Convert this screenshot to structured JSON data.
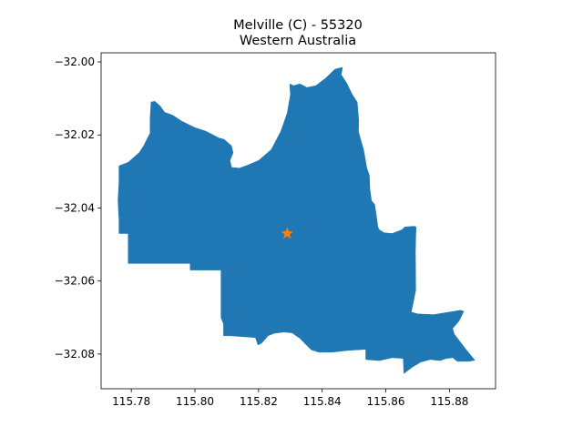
{
  "figure": {
    "title_line1": "Melville (C) - 55320",
    "title_line2": "Western Australia"
  },
  "chart_data": {
    "type": "map",
    "title": "Melville (C) - 55320",
    "subtitle": "Western Australia",
    "xlabel": "",
    "ylabel": "",
    "xlim": [
      115.7705,
      115.8945
    ],
    "ylim": [
      -32.0895,
      -31.9975
    ],
    "x_ticks": [
      "115.78",
      "115.80",
      "115.82",
      "115.84",
      "115.86",
      "115.88"
    ],
    "y_ticks": [
      "−32.00",
      "−32.02",
      "−32.04",
      "−32.06",
      "−32.08"
    ],
    "grid": false,
    "legend": "none",
    "colors": {
      "region_fill": "#1f77b4",
      "marker": "#ff7f0e"
    },
    "region_polygon": [
      [
        115.7761,
        -32.0285
      ],
      [
        115.779,
        -32.0275
      ],
      [
        115.7812,
        -32.0258
      ],
      [
        115.7825,
        -32.0248
      ],
      [
        115.784,
        -32.0228
      ],
      [
        115.785,
        -32.021
      ],
      [
        115.7859,
        -32.0195
      ],
      [
        115.7859,
        -32.0155
      ],
      [
        115.7862,
        -32.011
      ],
      [
        115.7874,
        -32.0108
      ],
      [
        115.789,
        -32.012
      ],
      [
        115.7905,
        -32.0138
      ],
      [
        115.7918,
        -32.0142
      ],
      [
        115.793,
        -32.0146
      ],
      [
        115.796,
        -32.0163
      ],
      [
        115.8,
        -32.018
      ],
      [
        115.8035,
        -32.019
      ],
      [
        115.8075,
        -32.0208
      ],
      [
        115.8092,
        -32.0212
      ],
      [
        115.8115,
        -32.023
      ],
      [
        115.812,
        -32.0249
      ],
      [
        115.811,
        -32.027
      ],
      [
        115.8115,
        -32.0289
      ],
      [
        115.814,
        -32.0291
      ],
      [
        115.8165,
        -32.0283
      ],
      [
        115.82,
        -32.027
      ],
      [
        115.824,
        -32.024
      ],
      [
        115.827,
        -32.019
      ],
      [
        115.829,
        -32.014
      ],
      [
        115.83,
        -32.009
      ],
      [
        115.8298,
        -32.006
      ],
      [
        115.831,
        -32.0065
      ],
      [
        115.833,
        -32.006
      ],
      [
        115.8352,
        -32.007
      ],
      [
        115.838,
        -32.0065
      ],
      [
        115.841,
        -32.0045
      ],
      [
        115.844,
        -32.002
      ],
      [
        115.8464,
        -32.0015
      ],
      [
        115.846,
        -32.0035
      ],
      [
        115.8475,
        -32.0055
      ],
      [
        115.8495,
        -32.009
      ],
      [
        115.851,
        -32.011
      ],
      [
        115.8515,
        -32.016
      ],
      [
        115.8514,
        -32.019
      ],
      [
        115.852,
        -32.021
      ],
      [
        115.853,
        -32.024
      ],
      [
        115.854,
        -32.029
      ],
      [
        115.8548,
        -32.031
      ],
      [
        115.855,
        -32.035
      ],
      [
        115.8555,
        -32.038
      ],
      [
        115.8565,
        -32.039
      ],
      [
        115.857,
        -32.042
      ],
      [
        115.8575,
        -32.0452
      ],
      [
        115.858,
        -32.046
      ],
      [
        115.8595,
        -32.0468
      ],
      [
        115.862,
        -32.047
      ],
      [
        115.865,
        -32.046
      ],
      [
        115.866,
        -32.0452
      ],
      [
        115.869,
        -32.045
      ],
      [
        115.8695,
        -32.0452
      ],
      [
        115.8693,
        -32.052
      ],
      [
        115.8694,
        -32.0625
      ],
      [
        115.868,
        -32.0685
      ],
      [
        115.87,
        -32.069
      ],
      [
        115.875,
        -32.0692
      ],
      [
        115.88,
        -32.0685
      ],
      [
        115.8835,
        -32.068
      ],
      [
        115.8845,
        -32.0683
      ],
      [
        115.883,
        -32.071
      ],
      [
        115.881,
        -32.073
      ],
      [
        115.8815,
        -32.0745
      ],
      [
        115.885,
        -32.0785
      ],
      [
        115.888,
        -32.0817
      ],
      [
        115.886,
        -32.082
      ],
      [
        115.8825,
        -32.082
      ],
      [
        115.881,
        -32.081
      ],
      [
        115.879,
        -32.0812
      ],
      [
        115.877,
        -32.0818
      ],
      [
        115.874,
        -32.0815
      ],
      [
        115.871,
        -32.0822
      ],
      [
        115.8685,
        -32.0835
      ],
      [
        115.8657,
        -32.0853
      ],
      [
        115.8655,
        -32.0812
      ],
      [
        115.862,
        -32.081
      ],
      [
        115.858,
        -32.0818
      ],
      [
        115.8537,
        -32.0815
      ],
      [
        115.8537,
        -32.0787
      ],
      [
        115.848,
        -32.079
      ],
      [
        115.843,
        -32.0795
      ],
      [
        115.839,
        -32.0795
      ],
      [
        115.8365,
        -32.0788
      ],
      [
        115.835,
        -32.0775
      ],
      [
        115.833,
        -32.0757
      ],
      [
        115.8305,
        -32.0742
      ],
      [
        115.828,
        -32.074
      ],
      [
        115.825,
        -32.0743
      ],
      [
        115.823,
        -32.075
      ],
      [
        115.821,
        -32.077
      ],
      [
        115.8198,
        -32.0775
      ],
      [
        115.819,
        -32.0755
      ],
      [
        115.811,
        -32.075
      ],
      [
        115.809,
        -32.075
      ],
      [
        115.809,
        -32.0718
      ],
      [
        115.8082,
        -32.07
      ],
      [
        115.8082,
        -32.057
      ],
      [
        115.7985,
        -32.057
      ],
      [
        115.7985,
        -32.0552
      ],
      [
        115.79,
        -32.0552
      ],
      [
        115.781,
        -32.0552
      ],
      [
        115.779,
        -32.0552
      ],
      [
        115.779,
        -32.047
      ],
      [
        115.7761,
        -32.047
      ],
      [
        115.7761,
        -32.043
      ],
      [
        115.7758,
        -32.038
      ],
      [
        115.7761,
        -32.033
      ]
    ],
    "marker": {
      "symbol": "star",
      "x": 115.829,
      "y": -32.047
    }
  }
}
